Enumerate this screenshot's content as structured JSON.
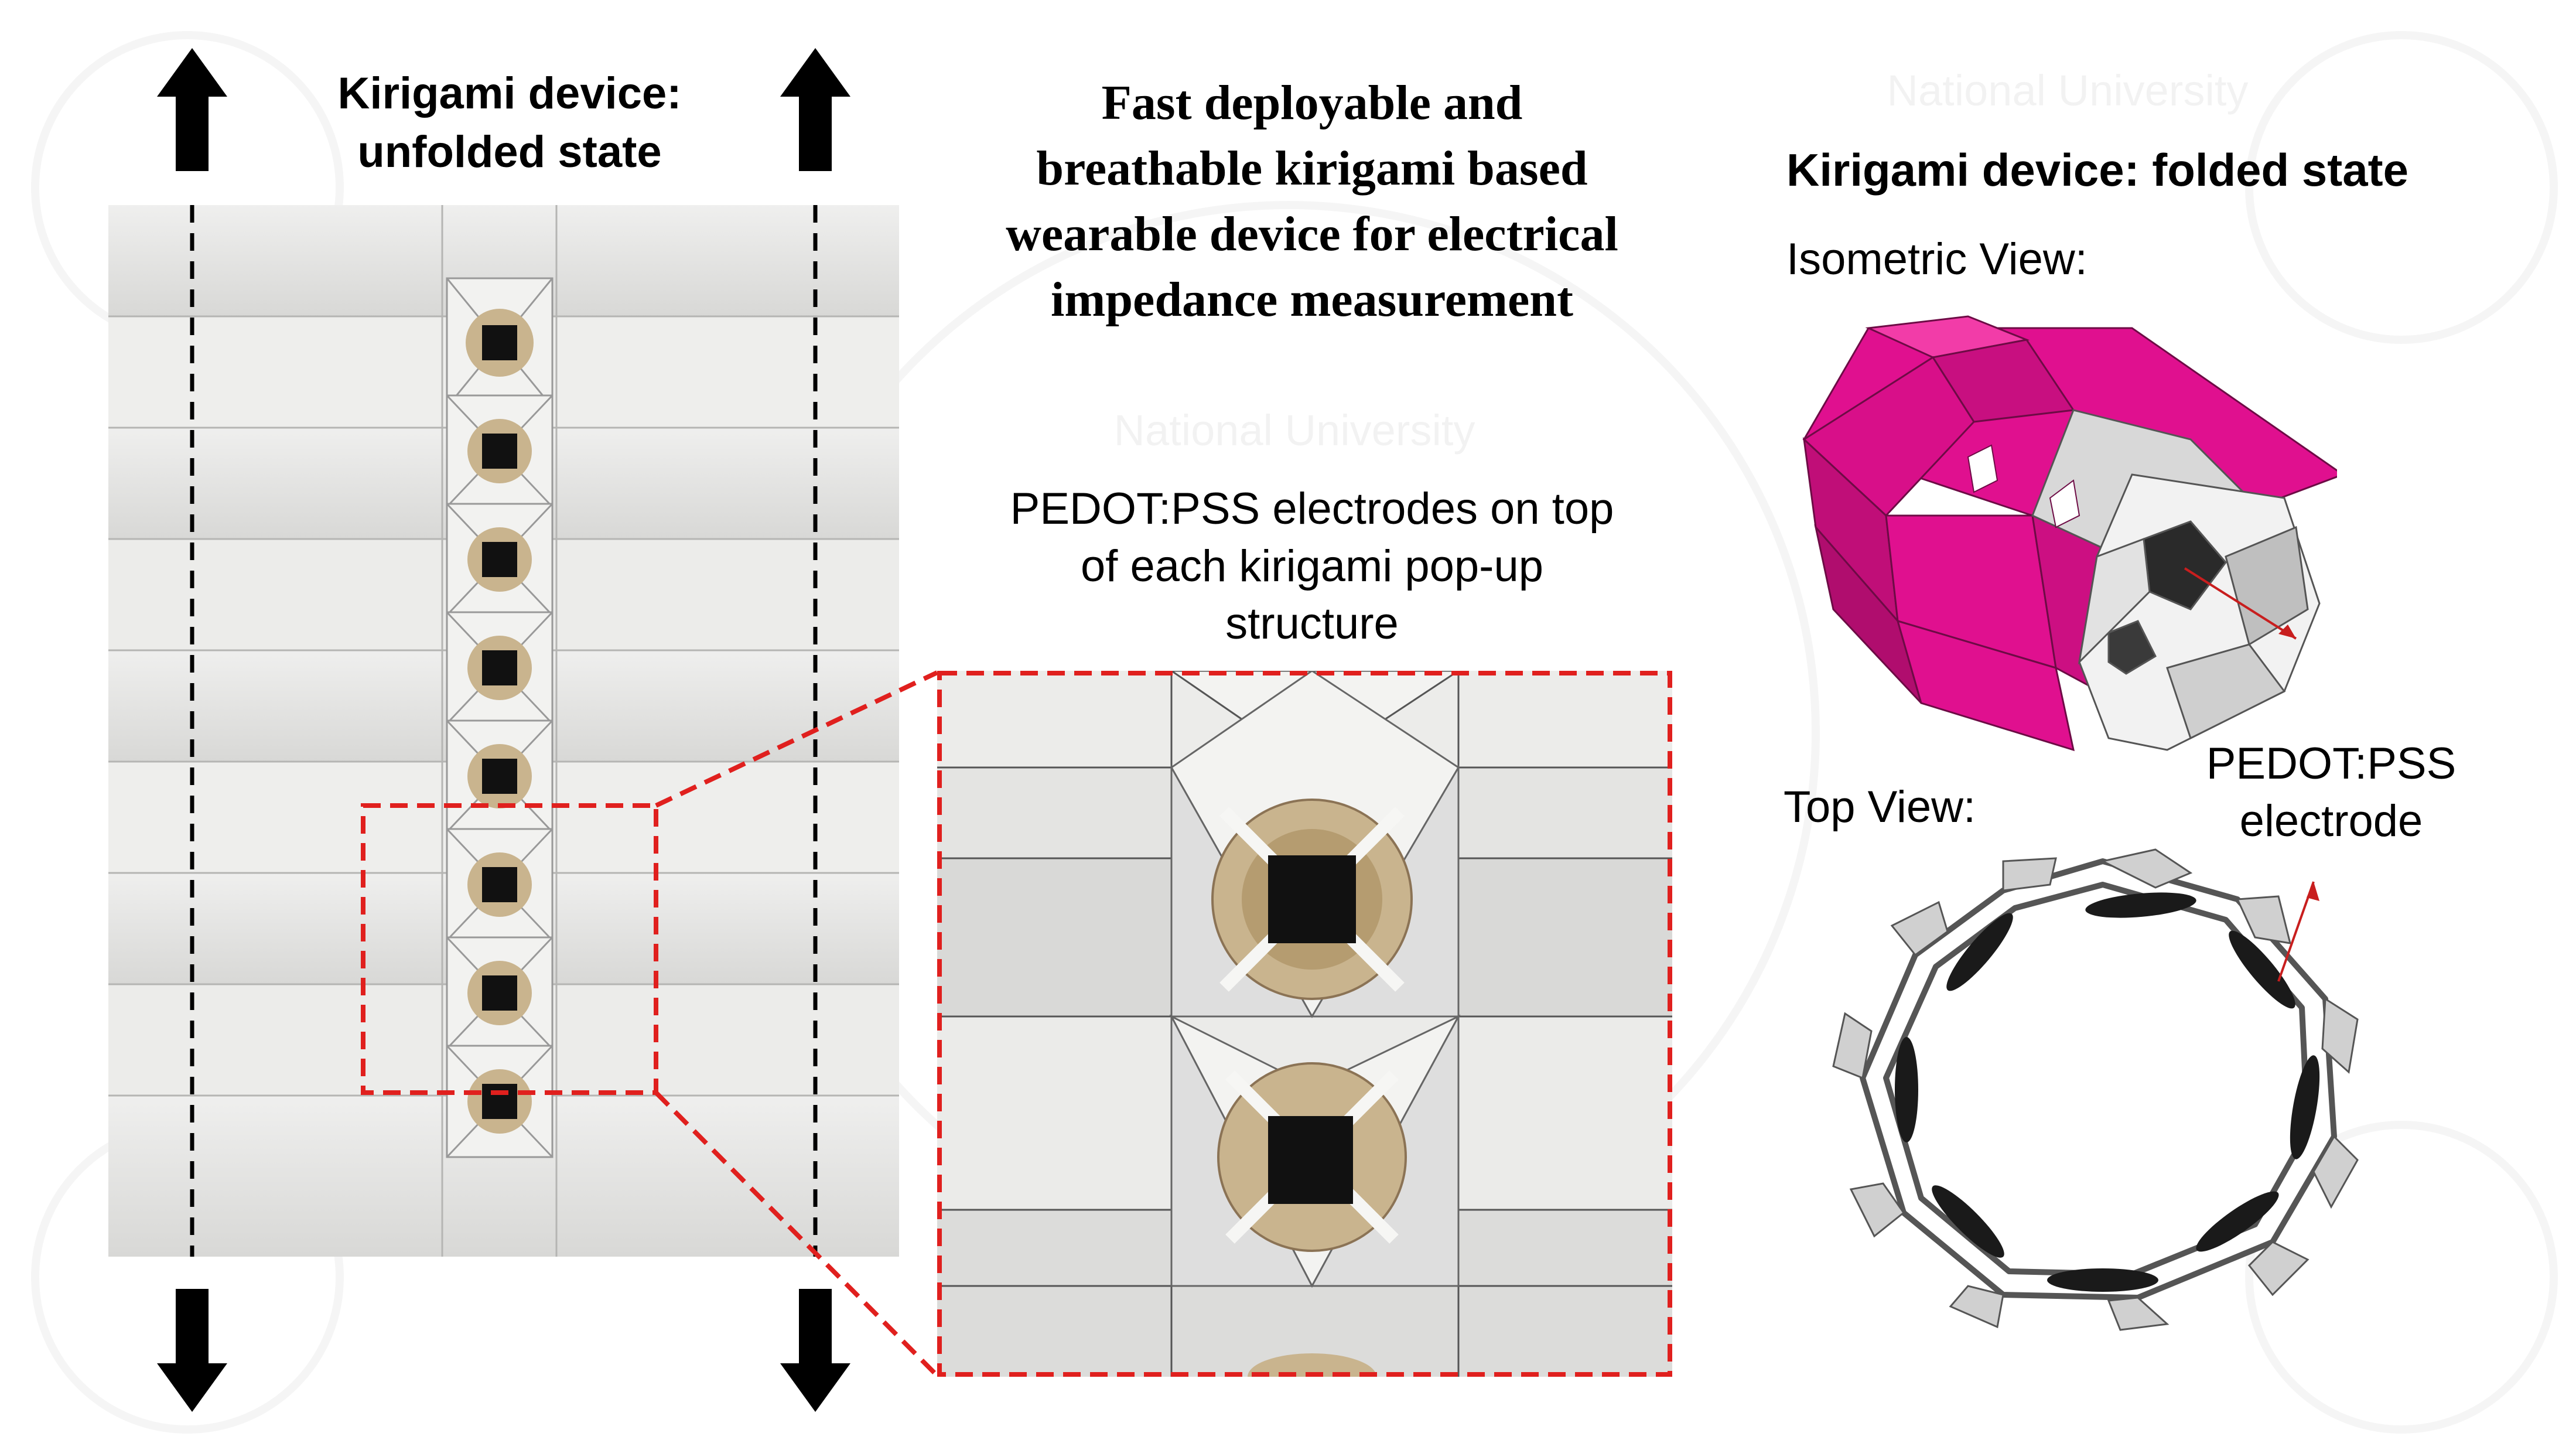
{
  "left_title": {
    "line1": "Kirigami device:",
    "line2": "unfolded state"
  },
  "main_title": {
    "line1": "Fast deployable and",
    "line2": "breathable kirigami based",
    "line3": "wearable device for electrical",
    "line4": "impedance measurement"
  },
  "electrode_caption": {
    "line1": "PEDOT:PSS electrodes on top",
    "line2": "of each kirigami pop-up",
    "line3": "structure"
  },
  "right_title": "Kirigami device: folded state",
  "isometric_label": "Isometric View:",
  "top_view_label": "Top View:",
  "pedot_label": {
    "line1": "PEDOT:PSS",
    "line2": "electrode"
  },
  "watermark_text": "National University",
  "colors": {
    "magenta": "#e0108f",
    "highlight_red": "#e0201e",
    "electrode": "#111111",
    "paper": "#e9e9e7",
    "disc": "#c9b48e"
  }
}
